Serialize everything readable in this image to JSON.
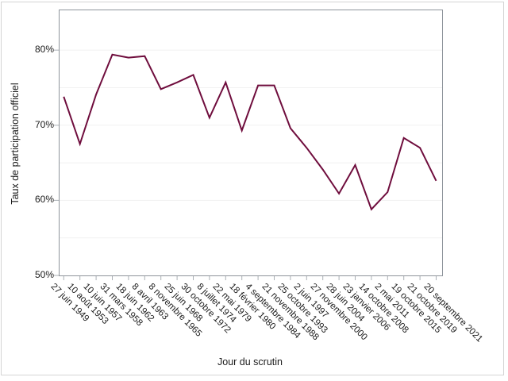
{
  "chart_data": {
    "type": "line",
    "title": "",
    "xlabel": "Jour du scrutin",
    "ylabel": "Taux de participation officiel",
    "categories": [
      "27 juin 1949",
      "10 août 1953",
      "10 juin 1957",
      "31 mars 1958",
      "18 juin 1962",
      "8 avril 1963",
      "8 novembre 1965",
      "25 juin 1968",
      "30 octobre 1972",
      "8 juillet 1974",
      "22 mai 1979",
      "18 février 1980",
      "4 septembre 1984",
      "21 novembre 1988",
      "25 octobre 1993",
      "2 juin 1997",
      "27 novembre 2000",
      "28 juin 2004",
      "23 janvier 2006",
      "14 octobre 2008",
      "2 mai 2011",
      "19 octobre 2015",
      "21 octobre 2019",
      "20 septembre 2021"
    ],
    "values": [
      73.8,
      67.5,
      74.1,
      79.4,
      79.0,
      79.2,
      74.8,
      75.7,
      76.7,
      71.0,
      75.7,
      69.3,
      75.3,
      75.3,
      69.6,
      67.0,
      64.1,
      60.9,
      64.7,
      58.8,
      61.1,
      68.3,
      67.0,
      62.6
    ],
    "ylim": [
      50,
      85.3
    ],
    "yticks": [
      50,
      60,
      70,
      80
    ],
    "ytick_labels": [
      "50%",
      "60%",
      "70%",
      "80%"
    ],
    "gridline_values": [
      55,
      60,
      65,
      70,
      75,
      80
    ],
    "grid": true,
    "legend": "none"
  },
  "colors": {
    "line": "#6F0D3D",
    "grid": "#F1F1F1",
    "plot_border": "#8E949B",
    "tick": "#ABB0B6",
    "text": "#1A1A1A",
    "frame": "#D4D4D4"
  }
}
